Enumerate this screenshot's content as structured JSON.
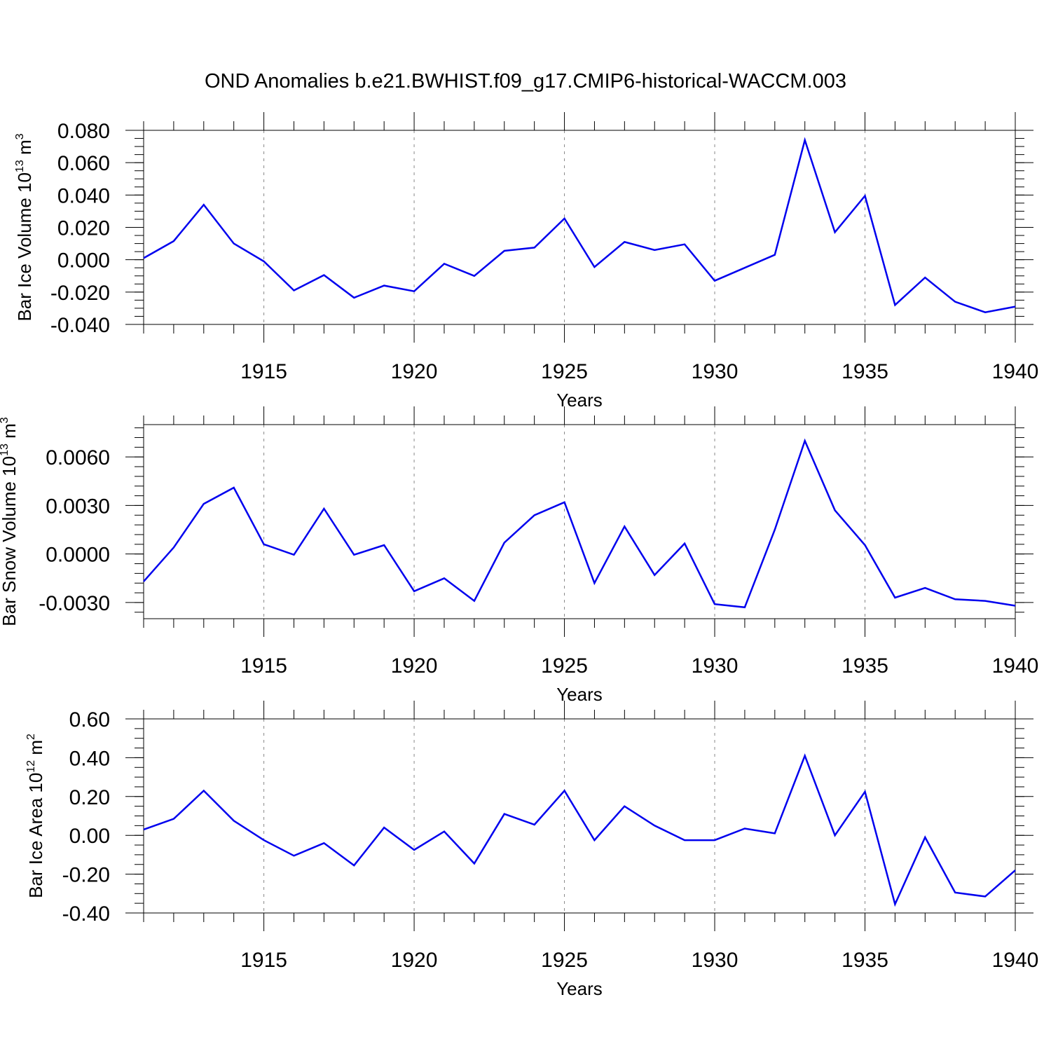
{
  "title": "OND Anomalies b.e21.BWHIST.f09_g17.CMIP6-historical-WACCM.003",
  "colors": {
    "line": "#0000ee",
    "frame": "#000000",
    "grid": "#888888"
  },
  "chart_data": [
    {
      "type": "line",
      "ylabel_main": "Bar Ice Volume 10",
      "ylabel_exp": "13",
      "ylabel_unit": " m",
      "ylabel_unit_exp": "3",
      "xlabel": "Years",
      "xlim": [
        1911,
        1940
      ],
      "ylim": [
        -0.04,
        0.08
      ],
      "yticks": [
        -0.04,
        -0.02,
        0.0,
        0.02,
        0.04,
        0.06,
        0.08
      ],
      "ytick_labels": [
        "-0.040",
        "-0.020",
        "0.000",
        "0.020",
        "0.040",
        "0.060",
        "0.080"
      ],
      "yminor": 0.005,
      "xticks": [
        1915,
        1920,
        1925,
        1930,
        1935,
        1940
      ],
      "xtick_labels": [
        "1915",
        "1920",
        "1925",
        "1930",
        "1935",
        "1940"
      ],
      "grid": true,
      "x": [
        1911,
        1912,
        1913,
        1914,
        1915,
        1916,
        1917,
        1918,
        1919,
        1920,
        1921,
        1922,
        1923,
        1924,
        1925,
        1926,
        1927,
        1928,
        1929,
        1930,
        1931,
        1932,
        1933,
        1934,
        1935,
        1936,
        1937,
        1938,
        1939,
        1940
      ],
      "values": [
        0.001,
        0.0115,
        0.034,
        0.01,
        -0.001,
        -0.019,
        -0.0095,
        -0.0235,
        -0.016,
        -0.0195,
        -0.0025,
        -0.01,
        0.0055,
        0.0075,
        0.0255,
        -0.0045,
        0.011,
        0.006,
        0.0095,
        -0.013,
        -0.005,
        0.003,
        0.074,
        0.017,
        0.0395,
        -0.028,
        -0.011,
        -0.026,
        -0.0325,
        -0.029
      ]
    },
    {
      "type": "line",
      "ylabel_main": "Bar Snow Volume 10",
      "ylabel_exp": "13",
      "ylabel_unit": " m",
      "ylabel_unit_exp": "3",
      "xlabel": "Years",
      "xlim": [
        1911,
        1940
      ],
      "ylim": [
        -0.004,
        0.008
      ],
      "yticks": [
        -0.003,
        0.0,
        0.003,
        0.006
      ],
      "ytick_labels": [
        "-0.0030",
        "0.0000",
        "0.0030",
        "0.0060"
      ],
      "yminor": 0.0006,
      "xticks": [
        1915,
        1920,
        1925,
        1930,
        1935,
        1940
      ],
      "xtick_labels": [
        "1915",
        "1920",
        "1925",
        "1930",
        "1935",
        "1940"
      ],
      "grid": true,
      "x": [
        1911,
        1912,
        1913,
        1914,
        1915,
        1916,
        1917,
        1918,
        1919,
        1920,
        1921,
        1922,
        1923,
        1924,
        1925,
        1926,
        1927,
        1928,
        1929,
        1930,
        1931,
        1932,
        1933,
        1934,
        1935,
        1936,
        1937,
        1938,
        1939,
        1940
      ],
      "values": [
        -0.0017,
        0.0004,
        0.0031,
        0.0041,
        0.0006,
        -5e-05,
        0.0028,
        -5e-05,
        0.00055,
        -0.0023,
        -0.0015,
        -0.0029,
        0.0007,
        0.0024,
        0.0032,
        -0.0018,
        0.0017,
        -0.0013,
        0.00065,
        -0.0031,
        -0.0033,
        0.0015,
        0.007,
        0.0027,
        0.00055,
        -0.0027,
        -0.0021,
        -0.0028,
        -0.0029,
        -0.0032
      ]
    },
    {
      "type": "line",
      "ylabel_main": "Bar Ice Area 10",
      "ylabel_exp": "12",
      "ylabel_unit": " m",
      "ylabel_unit_exp": "2",
      "xlabel": "Years",
      "xlim": [
        1911,
        1940
      ],
      "ylim": [
        -0.4,
        0.6
      ],
      "yticks": [
        -0.4,
        -0.2,
        0.0,
        0.2,
        0.4,
        0.6
      ],
      "ytick_labels": [
        "-0.40",
        "-0.20",
        "0.00",
        "0.20",
        "0.40",
        "0.60"
      ],
      "yminor": 0.05,
      "xticks": [
        1915,
        1920,
        1925,
        1930,
        1935,
        1940
      ],
      "xtick_labels": [
        "1915",
        "1920",
        "1925",
        "1930",
        "1935",
        "1940"
      ],
      "grid": true,
      "x": [
        1911,
        1912,
        1913,
        1914,
        1915,
        1916,
        1917,
        1918,
        1919,
        1920,
        1921,
        1922,
        1923,
        1924,
        1925,
        1926,
        1927,
        1928,
        1929,
        1930,
        1931,
        1932,
        1933,
        1934,
        1935,
        1936,
        1937,
        1938,
        1939,
        1940
      ],
      "values": [
        0.03,
        0.085,
        0.23,
        0.075,
        -0.025,
        -0.105,
        -0.04,
        -0.155,
        0.04,
        -0.075,
        0.02,
        -0.145,
        0.11,
        0.055,
        0.23,
        -0.025,
        0.15,
        0.05,
        -0.025,
        -0.025,
        0.035,
        0.01,
        0.41,
        0.0,
        0.225,
        -0.355,
        -0.01,
        -0.295,
        -0.315,
        -0.18
      ]
    }
  ]
}
